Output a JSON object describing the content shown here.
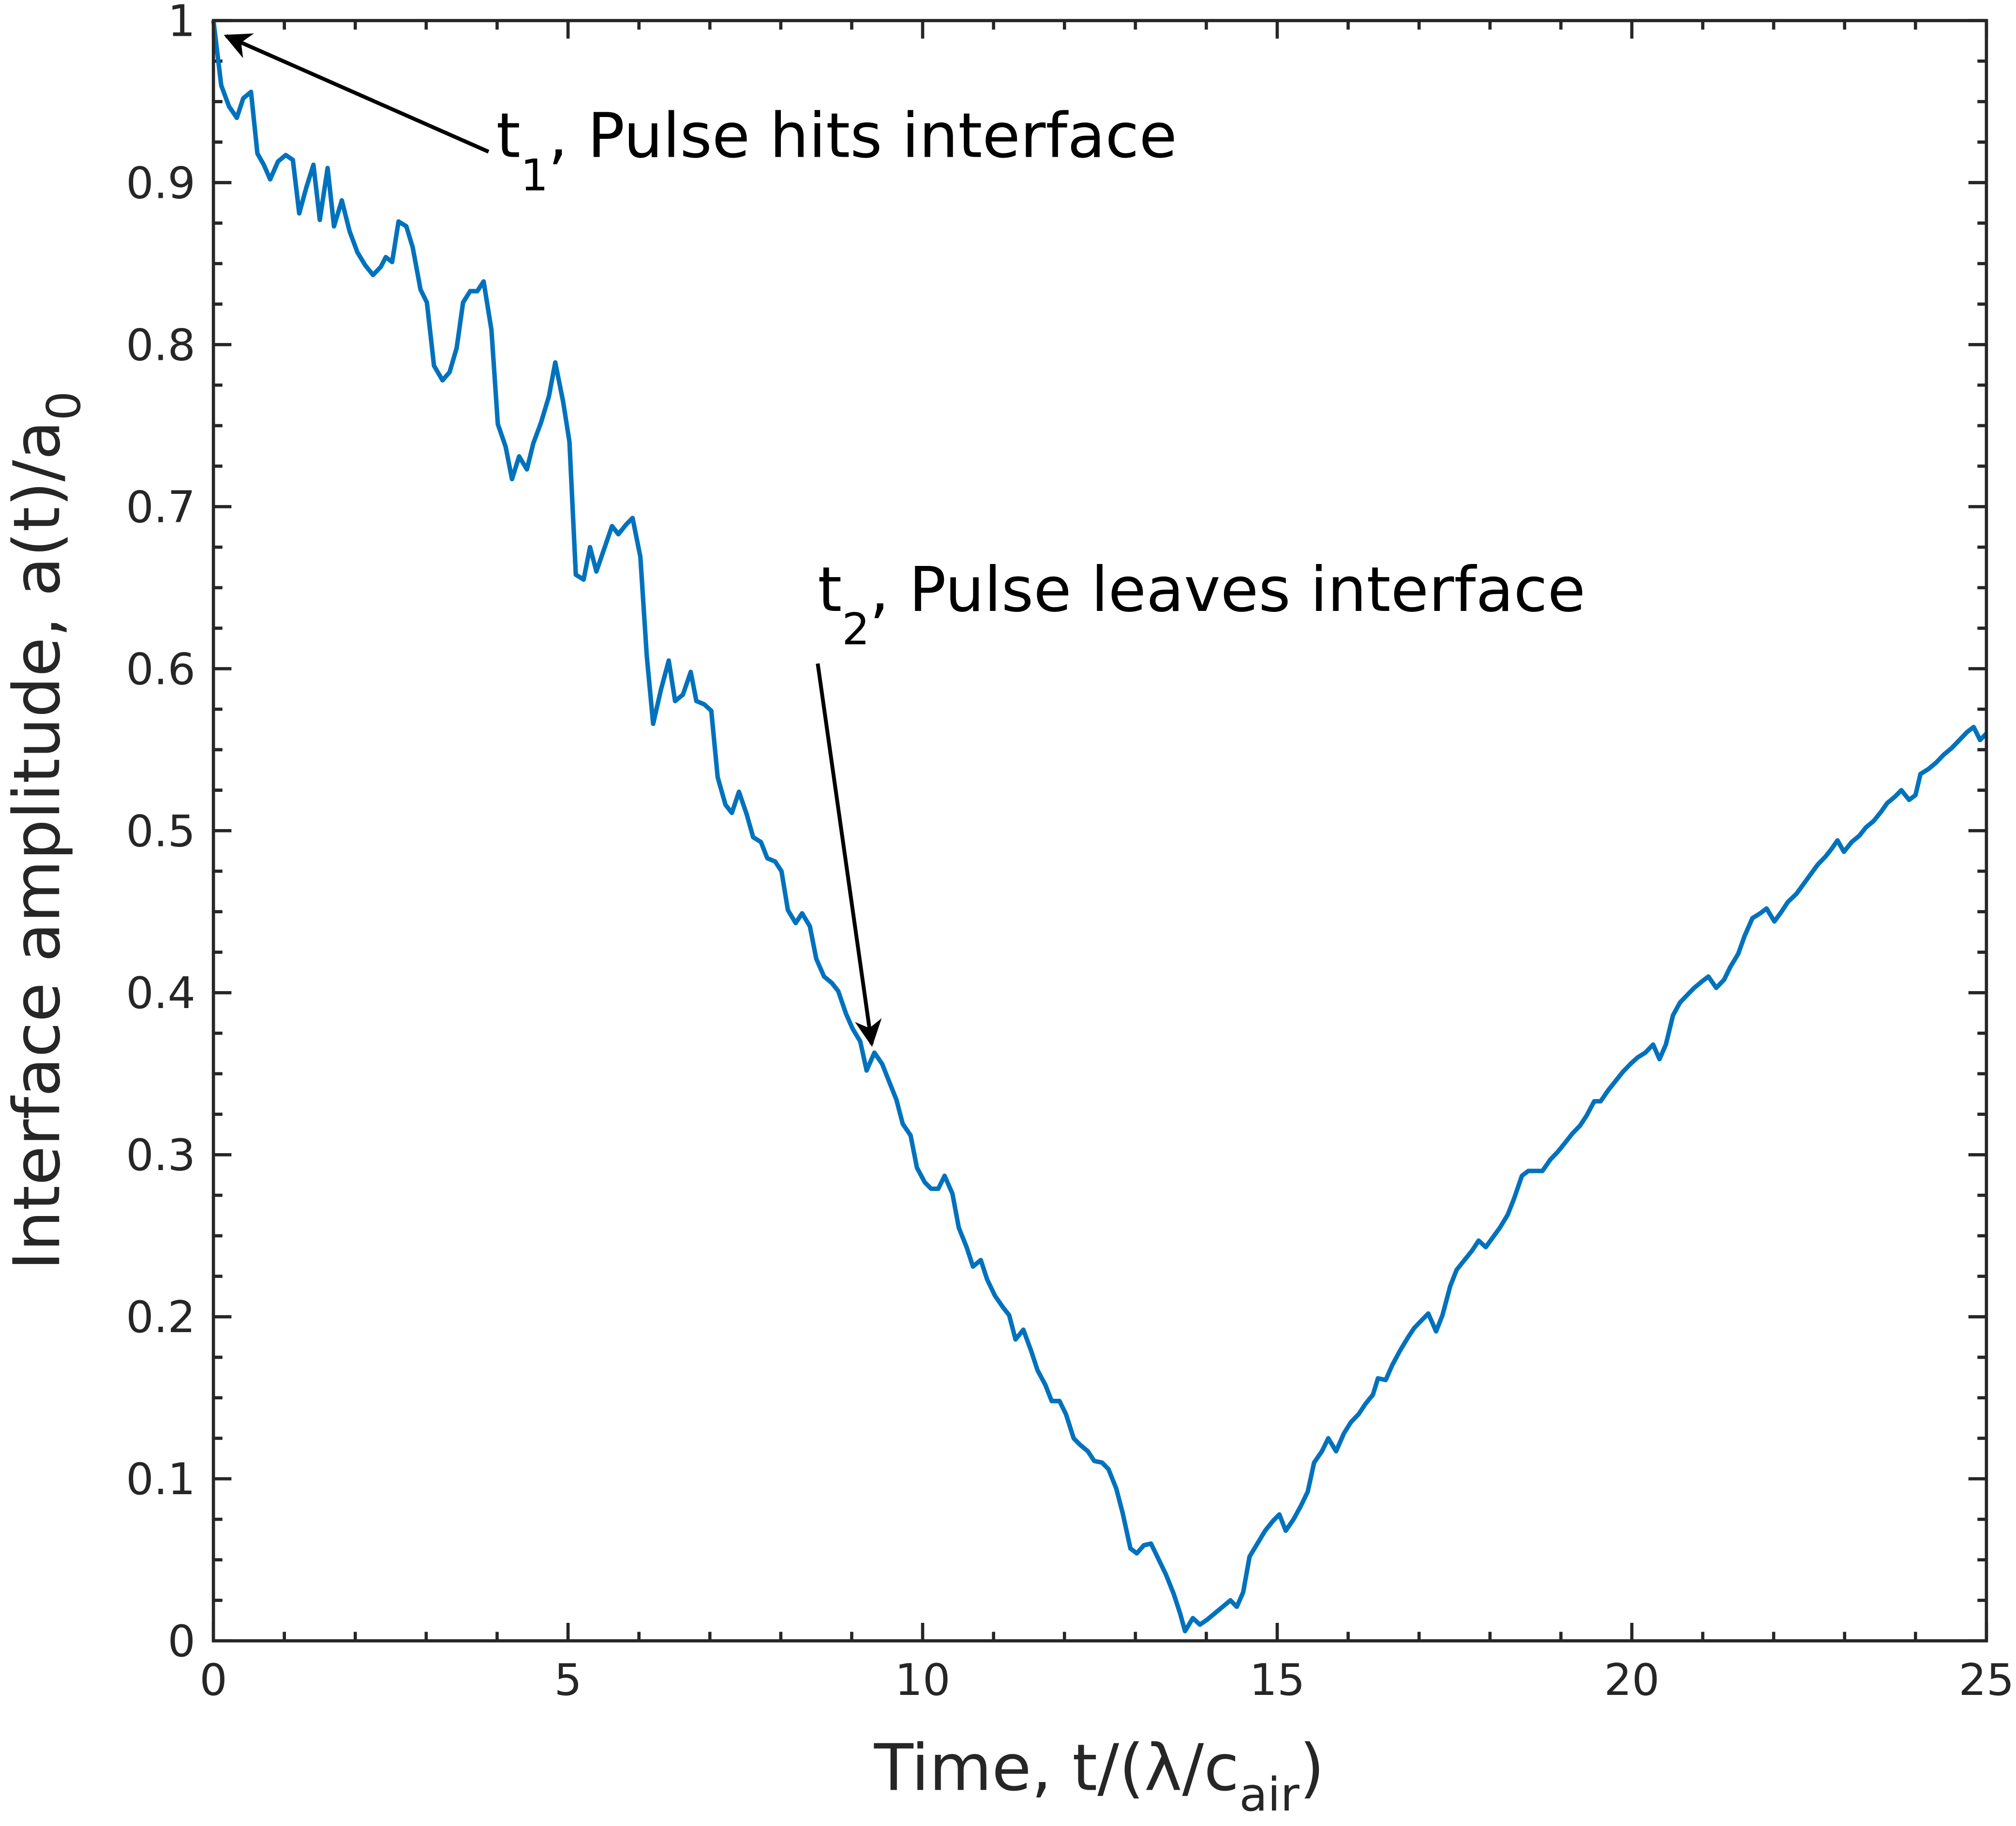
{
  "chart_data": {
    "type": "line",
    "xlabel_parts": [
      "Time, t/(λ/c",
      "air",
      ")"
    ],
    "ylabel_parts": [
      "Interface amplitude, a(t)/a",
      "0"
    ],
    "annotations": [
      {
        "parts": [
          "t",
          "1",
          ", Pulse hits interface"
        ]
      },
      {
        "parts": [
          "t",
          "2",
          ", Pulse leaves interface"
        ]
      }
    ],
    "xlim": [
      0,
      25
    ],
    "xticks": [
      0,
      5,
      10,
      15,
      20,
      25
    ],
    "ylim": [
      0,
      1
    ],
    "yticks": [
      0,
      0.1,
      0.2,
      0.3,
      0.4,
      0.5,
      0.6,
      0.7,
      0.8,
      0.9,
      1
    ],
    "x": [
      0,
      0.11,
      0.22,
      0.33,
      0.42,
      0.53,
      0.62,
      0.71,
      0.8,
      0.91,
      1.02,
      1.12,
      1.21,
      1.31,
      1.41,
      1.5,
      1.61,
      1.7,
      1.81,
      1.92,
      2.03,
      2.14,
      2.25,
      2.36,
      2.43,
      2.52,
      2.61,
      2.72,
      2.81,
      2.92,
      3.01,
      3.11,
      3.23,
      3.33,
      3.43,
      3.52,
      3.62,
      3.72,
      3.81,
      3.92,
      4.01,
      4.12,
      4.21,
      4.31,
      4.42,
      4.51,
      4.62,
      4.73,
      4.82,
      4.93,
      5.02,
      5.11,
      5.22,
      5.31,
      5.4,
      5.51,
      5.62,
      5.71,
      5.82,
      5.91,
      6.02,
      6.11,
      6.2,
      6.31,
      6.42,
      6.51,
      6.62,
      6.73,
      6.81,
      6.92,
      7.02,
      7.11,
      7.22,
      7.31,
      7.41,
      7.52,
      7.61,
      7.72,
      7.81,
      7.92,
      8.01,
      8.1,
      8.21,
      8.3,
      8.41,
      8.5,
      8.61,
      8.72,
      8.81,
      8.92,
      9.01,
      9.12,
      9.21,
      9.32,
      9.43,
      9.52,
      9.63,
      9.72,
      9.83,
      9.92,
      10.03,
      10.12,
      10.22,
      10.31,
      10.42,
      10.51,
      10.62,
      10.71,
      10.82,
      10.91,
      11.02,
      11.13,
      11.22,
      11.31,
      11.42,
      11.53,
      11.62,
      11.73,
      11.82,
      11.93,
      12.02,
      12.13,
      12.22,
      12.33,
      12.42,
      12.53,
      12.62,
      12.73,
      12.82,
      12.93,
      13.02,
      13.12,
      13.22,
      13.32,
      13.43,
      13.54,
      13.63,
      13.7,
      13.81,
      13.91,
      14.01,
      14.12,
      14.23,
      14.34,
      14.43,
      14.52,
      14.61,
      14.72,
      14.83,
      14.94,
      15.03,
      15.12,
      15.23,
      15.33,
      15.43,
      15.52,
      15.63,
      15.72,
      15.83,
      15.94,
      16.04,
      16.15,
      16.24,
      16.35,
      16.42,
      16.53,
      16.62,
      16.73,
      16.84,
      16.93,
      17.04,
      17.13,
      17.24,
      17.33,
      17.44,
      17.53,
      17.64,
      17.75,
      17.84,
      17.94,
      18.04,
      18.14,
      18.25,
      18.34,
      18.45,
      18.54,
      18.65,
      18.74,
      18.85,
      18.96,
      19.07,
      19.16,
      19.27,
      19.36,
      19.47,
      19.56,
      19.67,
      19.78,
      19.87,
      19.98,
      20.08,
      20.19,
      20.3,
      20.39,
      20.48,
      20.58,
      20.68,
      20.79,
      20.88,
      20.99,
      21.08,
      21.19,
      21.3,
      21.39,
      21.5,
      21.59,
      21.7,
      21.81,
      21.9,
      22.01,
      22.11,
      22.2,
      22.32,
      22.42,
      22.52,
      22.62,
      22.73,
      22.82,
      22.9,
      22.99,
      23.1,
      23.21,
      23.3,
      23.41,
      23.52,
      23.6,
      23.71,
      23.8,
      23.91,
      24,
      24.07,
      24.18,
      24.29,
      24.4,
      24.51,
      24.62,
      24.73,
      24.82,
      24.91,
      25
    ],
    "series": [
      {
        "color": "#0072bd",
        "values": [
          1,
          0.96,
          0.947,
          0.94,
          0.952,
          0.956,
          0.918,
          0.911,
          0.902,
          0.913,
          0.917,
          0.914,
          0.881,
          0.897,
          0.911,
          0.877,
          0.909,
          0.873,
          0.889,
          0.87,
          0.857,
          0.849,
          0.843,
          0.848,
          0.854,
          0.851,
          0.876,
          0.873,
          0.86,
          0.834,
          0.826,
          0.787,
          0.778,
          0.783,
          0.798,
          0.826,
          0.833,
          0.833,
          0.839,
          0.809,
          0.751,
          0.737,
          0.717,
          0.731,
          0.723,
          0.739,
          0.752,
          0.768,
          0.789,
          0.765,
          0.74,
          0.658,
          0.655,
          0.675,
          0.66,
          0.674,
          0.688,
          0.683,
          0.689,
          0.693,
          0.669,
          0.608,
          0.566,
          0.587,
          0.605,
          0.58,
          0.584,
          0.598,
          0.58,
          0.578,
          0.574,
          0.533,
          0.516,
          0.511,
          0.524,
          0.51,
          0.496,
          0.493,
          0.483,
          0.481,
          0.475,
          0.451,
          0.443,
          0.449,
          0.441,
          0.421,
          0.41,
          0.406,
          0.401,
          0.387,
          0.378,
          0.37,
          0.352,
          0.363,
          0.356,
          0.346,
          0.334,
          0.319,
          0.312,
          0.292,
          0.283,
          0.279,
          0.279,
          0.287,
          0.276,
          0.255,
          0.243,
          0.231,
          0.235,
          0.223,
          0.213,
          0.206,
          0.201,
          0.186,
          0.192,
          0.179,
          0.167,
          0.158,
          0.148,
          0.148,
          0.14,
          0.125,
          0.121,
          0.117,
          0.111,
          0.11,
          0.106,
          0.094,
          0.079,
          0.057,
          0.054,
          0.059,
          0.06,
          0.051,
          0.041,
          0.029,
          0.017,
          0.006,
          0.014,
          0.01,
          0.013,
          0.017,
          0.021,
          0.025,
          0.021,
          0.03,
          0.052,
          0.06,
          0.068,
          0.074,
          0.078,
          0.068,
          0.075,
          0.083,
          0.092,
          0.11,
          0.117,
          0.125,
          0.117,
          0.128,
          0.135,
          0.14,
          0.146,
          0.152,
          0.162,
          0.161,
          0.17,
          0.179,
          0.187,
          0.193,
          0.198,
          0.202,
          0.191,
          0.201,
          0.219,
          0.229,
          0.235,
          0.241,
          0.247,
          0.243,
          0.249,
          0.255,
          0.263,
          0.273,
          0.287,
          0.29,
          0.29,
          0.29,
          0.297,
          0.302,
          0.308,
          0.313,
          0.318,
          0.324,
          0.333,
          0.333,
          0.34,
          0.346,
          0.351,
          0.356,
          0.36,
          0.363,
          0.368,
          0.359,
          0.368,
          0.386,
          0.394,
          0.399,
          0.403,
          0.407,
          0.41,
          0.403,
          0.408,
          0.416,
          0.424,
          0.435,
          0.446,
          0.449,
          0.452,
          0.444,
          0.45,
          0.456,
          0.461,
          0.467,
          0.473,
          0.479,
          0.484,
          0.489,
          0.494,
          0.487,
          0.493,
          0.497,
          0.502,
          0.506,
          0.512,
          0.517,
          0.521,
          0.525,
          0.519,
          0.522,
          0.535,
          0.538,
          0.542,
          0.547,
          0.551,
          0.556,
          0.561,
          0.564,
          0.556,
          0.56
        ]
      }
    ]
  }
}
